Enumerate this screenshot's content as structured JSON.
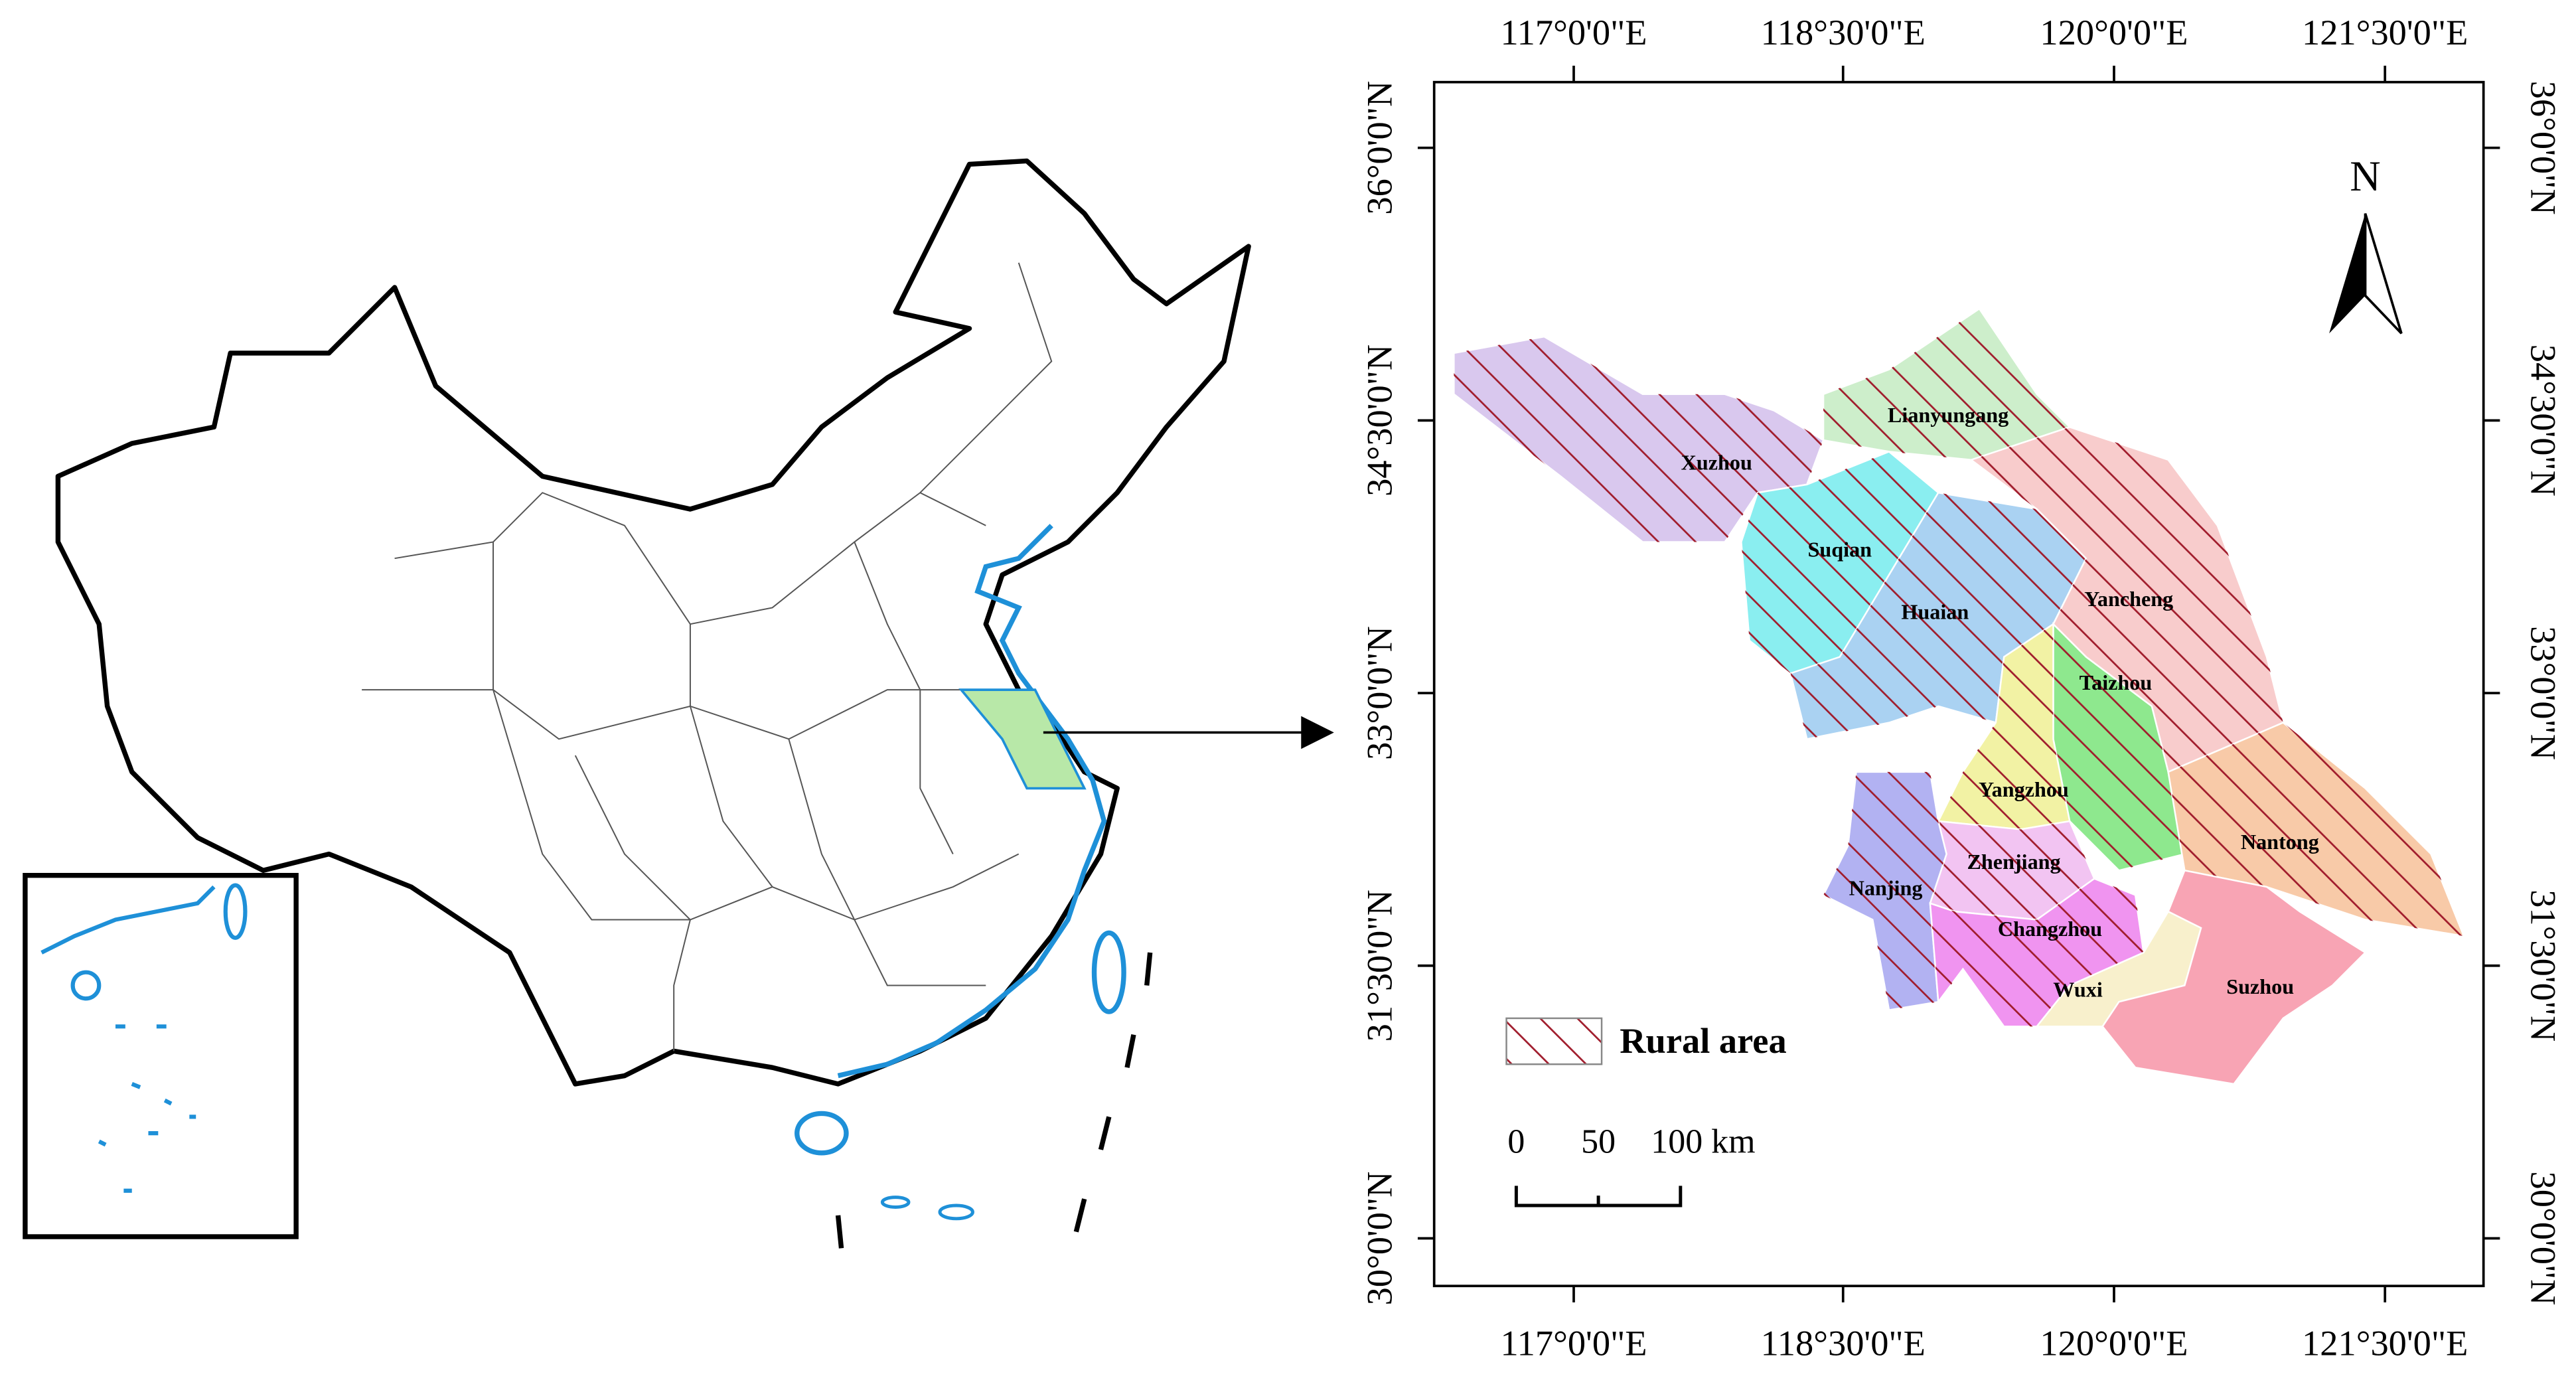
{
  "right_map": {
    "longitude_labels": [
      "117°0'0\"E",
      "118°30'0\"E",
      "120°0'0\"E",
      "121°30'0\"E"
    ],
    "latitude_labels": [
      "36°0'0\"N",
      "34°30'0\"N",
      "33°0'0\"N",
      "31°30'0\"N",
      "30°0'0\"N"
    ],
    "cities": [
      "Xuzhou",
      "Lianyungang",
      "Suqian",
      "Huaian",
      "Yancheng",
      "Taizhou",
      "Yangzhou",
      "Nantong",
      "Zhenjiang",
      "Nanjing",
      "Changzhou",
      "Wuxi",
      "Suzhou"
    ],
    "legend": {
      "label": "Rural area"
    },
    "scale_bar": {
      "labels": [
        "0",
        "50",
        "100 km"
      ]
    },
    "north_arrow": "N"
  }
}
